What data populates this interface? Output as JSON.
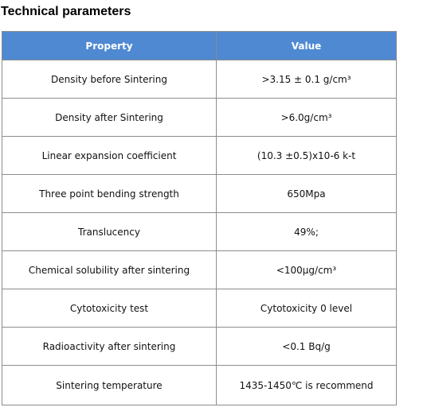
{
  "heading": "Technical parameters",
  "colors": {
    "header_background": "#4f89d2",
    "header_text": "#ffffff",
    "border": "#8c8c8c"
  },
  "table": {
    "headers": [
      "Property",
      "Value"
    ],
    "rows": [
      {
        "property": "Density before Sintering",
        "value": ">3.15 ±  0.1 g/cm³"
      },
      {
        "property": "Density after Sintering",
        "value": ">6.0g/cm³"
      },
      {
        "property": "Linear expansion coefficient",
        "value": "(10.3  ±0.5)x10-6 k-t"
      },
      {
        "property": "Three point bending strength",
        "value": "650Mpa"
      },
      {
        "property": "Translucency",
        "value": "49%;"
      },
      {
        "property": "Chemical solubility after sintering",
        "value": "<100μg/cm³"
      },
      {
        "property": "Cytotoxicity test",
        "value": "Cytotoxicity 0 level"
      },
      {
        "property": "Radioactivity after sintering",
        "value": "<0.1  Bq/g"
      },
      {
        "property": "Sintering temperature",
        "value": "1435-1450℃  is recommend"
      }
    ]
  }
}
